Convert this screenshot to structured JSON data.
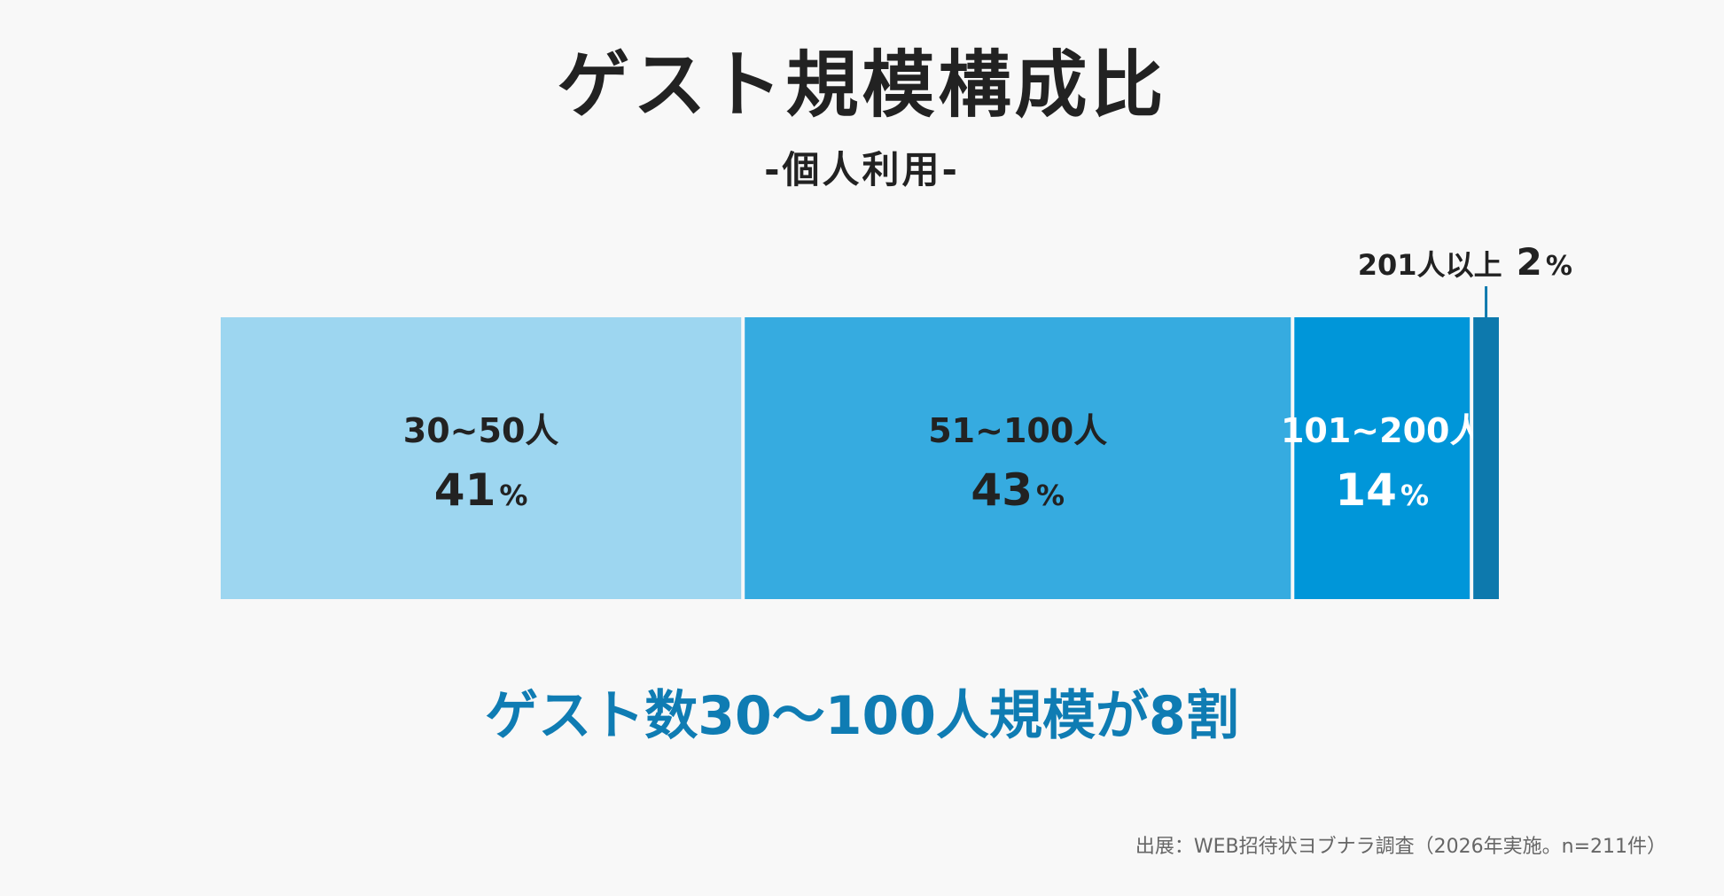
{
  "header": {
    "title": "ゲスト規模構成比",
    "subtitle": "-個人利用-"
  },
  "chart_data": {
    "type": "bar",
    "orientation": "horizontal-stacked-100",
    "categories": [
      "30~50人",
      "51~100人",
      "101~200人",
      "201人以上"
    ],
    "values": [
      41,
      43,
      14,
      2
    ],
    "value_labels": [
      "41",
      "43",
      "14",
      "2"
    ],
    "unit": "%",
    "colors": [
      "#9dd6f0",
      "#36abe0",
      "#0096d9",
      "#0d79ad"
    ],
    "label_colors": [
      "#222222",
      "#222222",
      "#ffffff",
      "#222222"
    ],
    "callout_color": "#0d79ad",
    "title": "ゲスト規模構成比",
    "subtitle": "-個人利用-",
    "xlabel": "",
    "ylabel": "",
    "legend": "none",
    "grid": false
  },
  "summary": {
    "headline": "ゲスト数30〜100人規模が8割"
  },
  "footer": {
    "source": "出展：WEB招待状ヨブナラ調査（2026年実施。n=211件）"
  }
}
